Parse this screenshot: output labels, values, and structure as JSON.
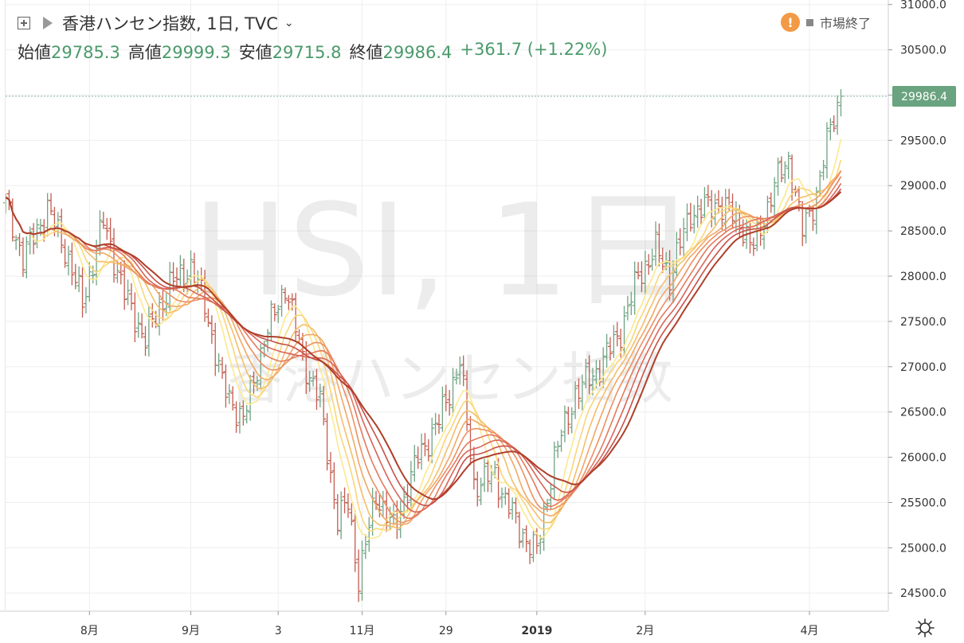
{
  "header": {
    "title": "香港ハンセン指数, 1日, TVC",
    "chevron": "⌄",
    "ohlc": [
      {
        "label": "始値",
        "value": "29785.3"
      },
      {
        "label": "高値",
        "value": "29999.3"
      },
      {
        "label": "安値",
        "value": "29715.8"
      },
      {
        "label": "終値",
        "value": "29986.4"
      }
    ],
    "change": "+361.7 (+1.22%)"
  },
  "status": {
    "icon": "warning-icon",
    "mark": "!",
    "text": "市場終了"
  },
  "watermark": {
    "symbol": "HSI, 1日",
    "name": "香港ハンセン指数"
  },
  "last_price": {
    "label": "29986.4",
    "value": 29986.4,
    "color": "#6aa37f"
  },
  "colors": {
    "up": "#6fa383",
    "down": "#c45b4e",
    "grid": "#eeeeee",
    "ribbon": [
      "#fbe98f",
      "#f9d67a",
      "#f5be6b",
      "#f1a766",
      "#ec9063",
      "#e47a5e",
      "#d8655a",
      "#c75148",
      "#ad3f2a"
    ]
  },
  "chart_data": {
    "type": "line",
    "y_ticks": [
      "31000.0",
      "30500.0",
      "30000.0",
      "29500.0",
      "29000.0",
      "28500.0",
      "28000.0",
      "27500.0",
      "27000.0",
      "26500.0",
      "26000.0",
      "25500.0",
      "25000.0",
      "24500.0"
    ],
    "x_ticks": [
      "8月",
      "9月",
      "3",
      "11月",
      "29",
      "2019",
      "2月",
      "4月"
    ],
    "x_tick_days": [
      24,
      53,
      78,
      102,
      126,
      152,
      183,
      230
    ],
    "ylim": [
      24300,
      31050
    ],
    "xlim": [
      0,
      248
    ],
    "price_path": [
      {
        "d": 0,
        "v": 28800
      },
      {
        "d": 5,
        "v": 28200
      },
      {
        "d": 12,
        "v": 28750
      },
      {
        "d": 17,
        "v": 28300
      },
      {
        "d": 22,
        "v": 27700
      },
      {
        "d": 28,
        "v": 28600
      },
      {
        "d": 34,
        "v": 27800
      },
      {
        "d": 40,
        "v": 27300
      },
      {
        "d": 47,
        "v": 27900
      },
      {
        "d": 53,
        "v": 28100
      },
      {
        "d": 57,
        "v": 27700
      },
      {
        "d": 62,
        "v": 26800
      },
      {
        "d": 68,
        "v": 26400
      },
      {
        "d": 74,
        "v": 27300
      },
      {
        "d": 80,
        "v": 27900
      },
      {
        "d": 85,
        "v": 27100
      },
      {
        "d": 90,
        "v": 26600
      },
      {
        "d": 95,
        "v": 25300
      },
      {
        "d": 98,
        "v": 25500
      },
      {
        "d": 101,
        "v": 24650
      },
      {
        "d": 106,
        "v": 25600
      },
      {
        "d": 111,
        "v": 25200
      },
      {
        "d": 118,
        "v": 26000
      },
      {
        "d": 124,
        "v": 26400
      },
      {
        "d": 130,
        "v": 27050
      },
      {
        "d": 134,
        "v": 25700
      },
      {
        "d": 140,
        "v": 25800
      },
      {
        "d": 147,
        "v": 25200
      },
      {
        "d": 152,
        "v": 24950
      },
      {
        "d": 157,
        "v": 26000
      },
      {
        "d": 163,
        "v": 26700
      },
      {
        "d": 170,
        "v": 27000
      },
      {
        "d": 176,
        "v": 27400
      },
      {
        "d": 181,
        "v": 28000
      },
      {
        "d": 186,
        "v": 28300
      },
      {
        "d": 190,
        "v": 28000
      },
      {
        "d": 196,
        "v": 28700
      },
      {
        "d": 204,
        "v": 28800
      },
      {
        "d": 210,
        "v": 28600
      },
      {
        "d": 214,
        "v": 28300
      },
      {
        "d": 220,
        "v": 29000
      },
      {
        "d": 224,
        "v": 29300
      },
      {
        "d": 228,
        "v": 28500
      },
      {
        "d": 232,
        "v": 28900
      },
      {
        "d": 236,
        "v": 29650
      },
      {
        "d": 239,
        "v": 29986.4
      }
    ],
    "ma_periods": [
      8,
      11,
      14,
      17,
      20,
      23,
      26,
      29,
      32
    ],
    "grid": true
  }
}
